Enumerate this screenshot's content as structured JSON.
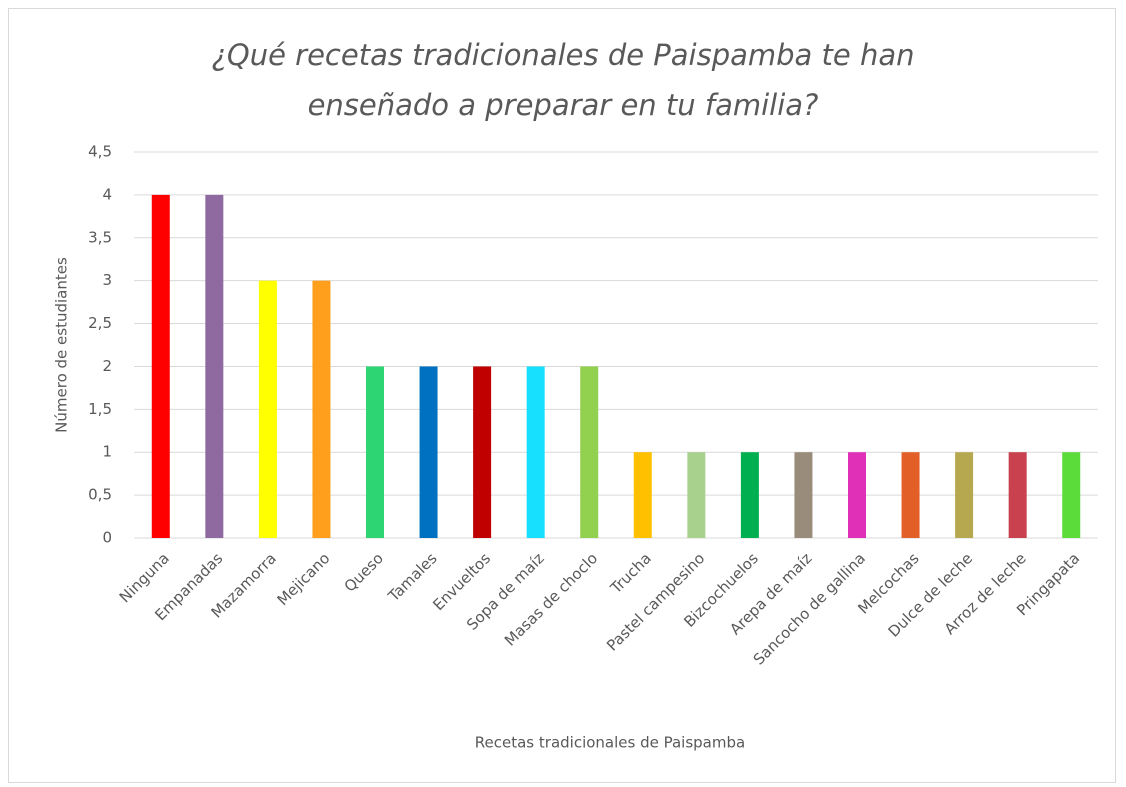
{
  "chart_data": {
    "type": "bar",
    "title": "¿Qué recetas tradicionales de Paispamba te han enseñado a preparar en tu familia?",
    "x_label": "Recetas tradicionales de Paispamba",
    "y_label": "Número de estudiantes",
    "categories": [
      "Ninguna",
      "Empanadas",
      "Mazamorra",
      "Mejicano",
      "Queso",
      "Tamales",
      "Envueltos",
      "Sopa de maíz",
      "Masas de choclo",
      "Trucha",
      "Pastel campesino",
      "Bizcochuelos",
      "Arepa de maíz",
      "Sancocho de gallina",
      "Melcochas",
      "Dulce de leche",
      "Arroz de leche",
      "Pringapata"
    ],
    "values": [
      4,
      4,
      3,
      3,
      2,
      2,
      2,
      2,
      2,
      1,
      1,
      1,
      1,
      1,
      1,
      1,
      1,
      1
    ],
    "colors": [
      "#ff0000",
      "#8e6aa0",
      "#ffff00",
      "#ff9f1c",
      "#2ed573",
      "#0070c0",
      "#c00000",
      "#17e0ff",
      "#92d050",
      "#ffc000",
      "#a9d18e",
      "#00b050",
      "#9a8c7a",
      "#e030b8",
      "#e35f28",
      "#b5a84f",
      "#c9404e",
      "#5cdc3a"
    ],
    "ylim": [
      0,
      4.5
    ],
    "yticks": [
      0,
      {
        "value": 0.5,
        "label": "0,5"
      },
      1,
      {
        "value": 1.5,
        "label": "1,5"
      },
      2,
      {
        "value": 2.5,
        "label": "2,5"
      },
      3,
      {
        "value": 3.5,
        "label": "3,5"
      },
      4,
      {
        "value": 4.5,
        "label": "4,5"
      }
    ],
    "grid": true
  }
}
